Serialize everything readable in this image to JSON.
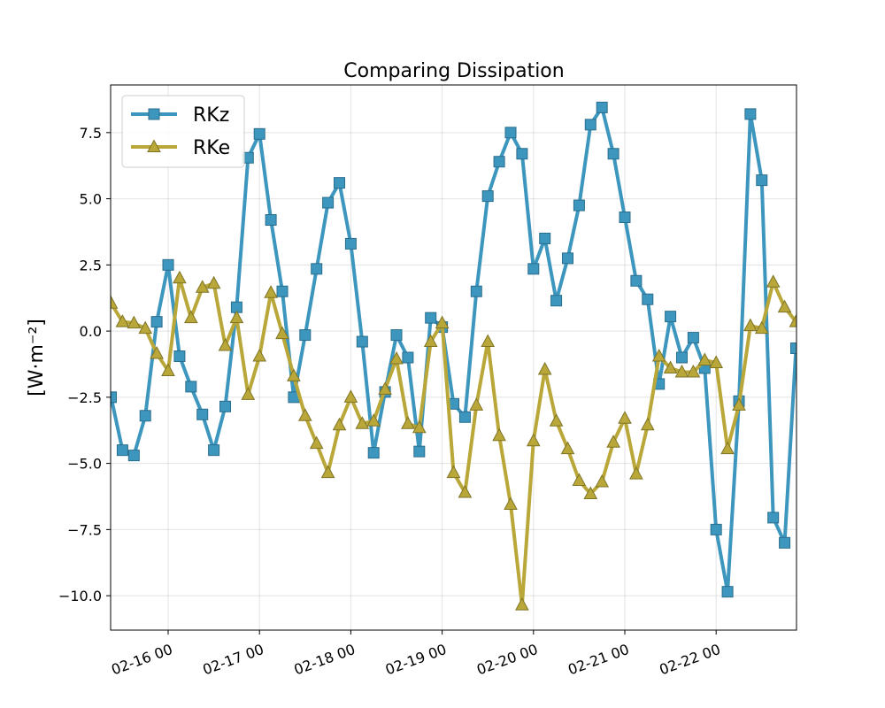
{
  "chart_data": {
    "type": "line",
    "title": "Comparing Dissipation",
    "xlabel": "",
    "ylabel": "[W·m⁻²]",
    "x_tick_labels": [
      "02-16 00",
      "02-17 00",
      "02-18 00",
      "02-19 00",
      "02-20 00",
      "02-21 00",
      "02-22 00"
    ],
    "y_ticks": [
      -10.0,
      -7.5,
      -5.0,
      -2.5,
      0.0,
      2.5,
      5.0,
      7.5
    ],
    "y_tick_labels": [
      "−10.0",
      "−7.5",
      "−5.0",
      "−2.5",
      "0.0",
      "2.5",
      "5.0",
      "7.5"
    ],
    "ylim": [
      -11.3,
      9.3
    ],
    "xlim_days": [
      -0.63,
      6.88
    ],
    "grid": true,
    "legend_position": "top-left",
    "time_step_hours": 3,
    "x_start_offset_hours": -15,
    "series": [
      {
        "name": "RKz",
        "color": "#3d96bd",
        "marker": "square",
        "values": [
          -2.5,
          -4.5,
          -4.7,
          -3.2,
          0.35,
          2.5,
          -0.95,
          -2.1,
          -3.15,
          -4.5,
          -2.85,
          0.9,
          6.55,
          7.45,
          4.2,
          1.5,
          -2.5,
          -0.15,
          2.35,
          4.85,
          5.6,
          3.3,
          -0.4,
          -4.6,
          -2.3,
          -0.15,
          -1.0,
          -4.55,
          0.5,
          0.15,
          -2.75,
          -3.25,
          1.5,
          5.1,
          6.4,
          7.5,
          6.7,
          2.35,
          3.5,
          1.15,
          2.75,
          4.75,
          7.8,
          8.45,
          6.7,
          4.3,
          1.9,
          1.2,
          -2.0,
          0.55,
          -1.0,
          -0.25,
          -1.4,
          -7.5,
          -9.85,
          -2.65,
          8.2,
          5.7,
          -7.05,
          -8.0,
          -0.65
        ]
      },
      {
        "name": "RKe",
        "color": "#b9a739",
        "marker": "triangle",
        "values": [
          1.05,
          0.35,
          0.3,
          0.1,
          -0.85,
          -1.5,
          2.0,
          0.5,
          1.65,
          1.8,
          -0.55,
          0.5,
          -2.4,
          -0.95,
          1.45,
          -0.1,
          -1.7,
          -3.2,
          -4.25,
          -5.35,
          -3.55,
          -2.5,
          -3.5,
          -3.4,
          -2.2,
          -1.05,
          -3.5,
          -3.65,
          -0.4,
          0.3,
          -5.35,
          -6.1,
          -2.8,
          -0.4,
          -3.95,
          -6.55,
          -10.35,
          -4.15,
          -1.45,
          -3.4,
          -4.45,
          -5.65,
          -6.15,
          -5.7,
          -4.2,
          -3.3,
          -5.4,
          -3.55,
          -0.95,
          -1.4,
          -1.55,
          -1.55,
          -1.1,
          -1.2,
          -4.45,
          -2.8,
          0.2,
          0.1,
          1.85,
          0.9,
          0.35
        ]
      }
    ]
  },
  "colors": {
    "background": "#ffffff",
    "grid": "#b0b0b0",
    "axes": "#000000"
  }
}
